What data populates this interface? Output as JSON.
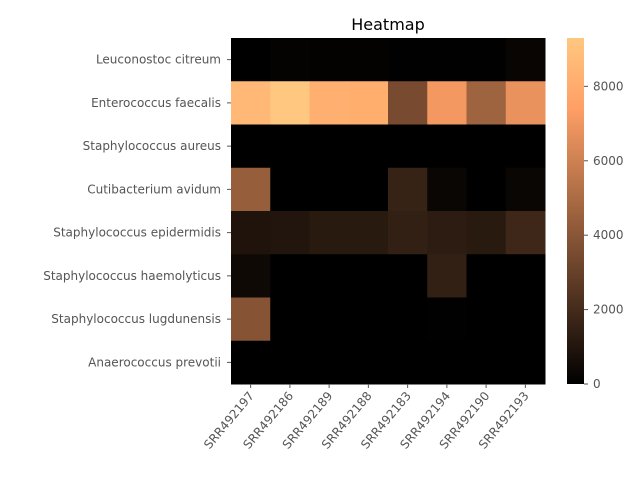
{
  "chart_data": {
    "type": "heatmap",
    "title": "Heatmap",
    "xlabel": "",
    "ylabel": "",
    "columns": [
      "SRR492197",
      "SRR492186",
      "SRR492189",
      "SRR492188",
      "SRR492183",
      "SRR492194",
      "SRR492190",
      "SRR492193"
    ],
    "rows": [
      "Leuconostoc citreum",
      "Enterococcus faecalis",
      "Staphylococcus aureus",
      "Cutibacterium avidum",
      "Staphylococcus epidermidis",
      "Staphylococcus haemolyticus",
      "Staphylococcus lugdunensis",
      "Anaerococcus prevotii"
    ],
    "values": [
      [
        0,
        150,
        100,
        100,
        60,
        60,
        60,
        250
      ],
      [
        8600,
        9300,
        8200,
        8100,
        3500,
        7100,
        4600,
        6800
      ],
      [
        0,
        0,
        0,
        0,
        0,
        0,
        0,
        0
      ],
      [
        4400,
        0,
        0,
        0,
        1600,
        300,
        0,
        300
      ],
      [
        900,
        1000,
        1200,
        1200,
        1500,
        1300,
        1200,
        1800
      ],
      [
        400,
        0,
        0,
        0,
        0,
        1500,
        0,
        0
      ],
      [
        3900,
        0,
        0,
        0,
        0,
        50,
        0,
        0
      ],
      [
        0,
        0,
        0,
        0,
        0,
        0,
        0,
        0
      ]
    ],
    "colormap": "copper",
    "colorbar": {
      "range": [
        0,
        9300
      ],
      "ticks": [
        0,
        2000,
        4000,
        6000,
        8000
      ],
      "tick_labels": [
        "0",
        "2000",
        "4000",
        "6000",
        "8000"
      ]
    },
    "grid": false
  }
}
